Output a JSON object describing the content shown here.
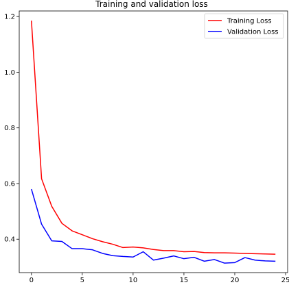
{
  "chart_data": {
    "type": "line",
    "title": "Training and validation loss",
    "xlabel": "",
    "ylabel": "",
    "xlim": [
      -1.2,
      25.2
    ],
    "ylim": [
      0.28,
      1.22
    ],
    "xticks": [
      0,
      5,
      10,
      15,
      20,
      25
    ],
    "yticks": [
      0.4,
      0.6,
      0.8,
      1.0,
      1.2
    ],
    "ytick_labels": [
      "0.4",
      "0.6",
      "0.8",
      "1.0",
      "1.2"
    ],
    "grid": false,
    "legend_position": "top-right",
    "x": [
      0,
      1,
      2,
      3,
      4,
      5,
      6,
      7,
      8,
      9,
      10,
      11,
      12,
      13,
      14,
      15,
      16,
      17,
      18,
      19,
      20,
      21,
      22,
      23,
      24
    ],
    "series": [
      {
        "name": "Training Loss",
        "color": "#ff0000",
        "values": [
          1.185,
          0.617,
          0.518,
          0.457,
          0.43,
          0.416,
          0.402,
          0.391,
          0.382,
          0.37,
          0.372,
          0.369,
          0.363,
          0.359,
          0.359,
          0.355,
          0.356,
          0.352,
          0.351,
          0.351,
          0.35,
          0.349,
          0.348,
          0.347,
          0.346
        ]
      },
      {
        "name": "Validation Loss",
        "color": "#0000ff",
        "values": [
          0.58,
          0.454,
          0.394,
          0.392,
          0.366,
          0.366,
          0.362,
          0.349,
          0.341,
          0.338,
          0.336,
          0.355,
          0.325,
          0.332,
          0.34,
          0.33,
          0.335,
          0.321,
          0.327,
          0.314,
          0.316,
          0.334,
          0.325,
          0.322,
          0.321
        ]
      }
    ]
  }
}
